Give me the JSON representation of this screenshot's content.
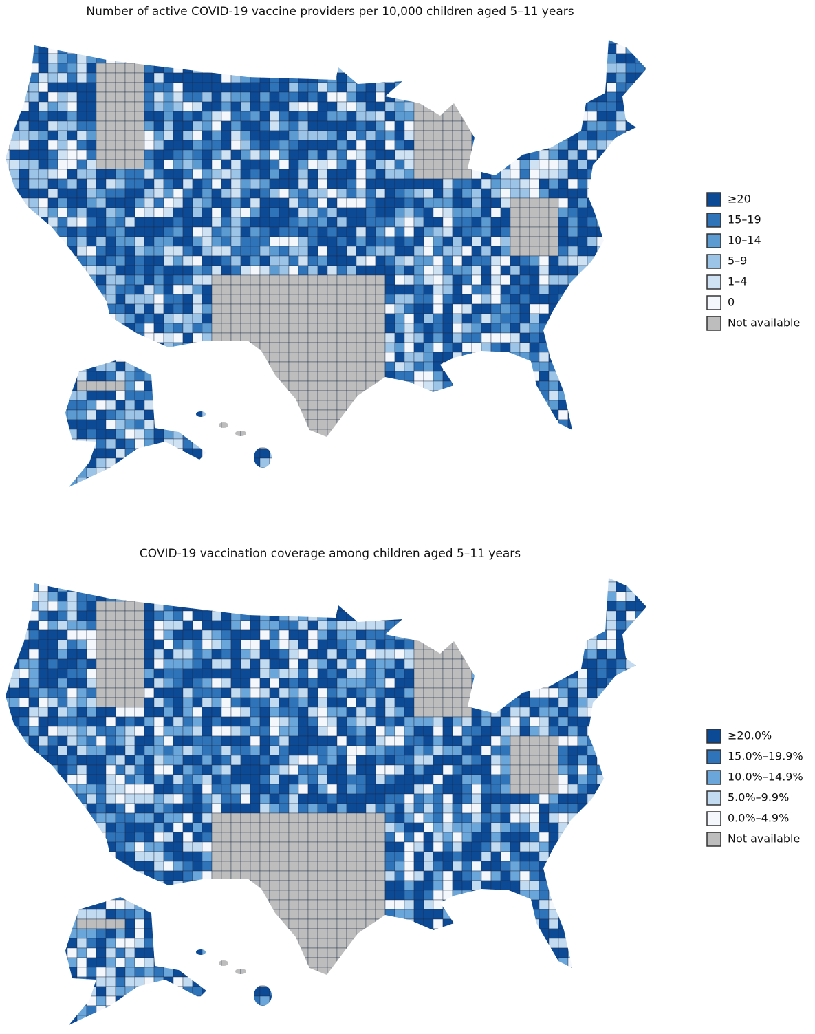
{
  "maps": [
    {
      "title": "Number of active COVID-19 vaccine providers per 10,000 children aged 5–11 years",
      "legend": [
        {
          "label": "≥20",
          "color": "#0d4a96"
        },
        {
          "label": "15–19",
          "color": "#2f73b9"
        },
        {
          "label": "10–14",
          "color": "#5b9bd2"
        },
        {
          "label": "5–9",
          "color": "#9bc4e6"
        },
        {
          "label": "1–4",
          "color": "#cfe2f3"
        },
        {
          "label": "0",
          "color": "#f4f8fd"
        },
        {
          "label": "Not available",
          "color": "#bdbdbd"
        }
      ]
    },
    {
      "title": "COVID-19 vaccination coverage among children aged 5–11 years",
      "legend": [
        {
          "label": "≥20.0%",
          "color": "#0d4a96"
        },
        {
          "label": "15.0%–19.9%",
          "color": "#2f73b9"
        },
        {
          "label": "10.0%–14.9%",
          "color": "#6aa6d9"
        },
        {
          "label": "5.0%–9.9%",
          "color": "#c2dbf0"
        },
        {
          "label": "0.0%–4.9%",
          "color": "#f4f8fd"
        },
        {
          "label": "Not available",
          "color": "#bdbdbd"
        }
      ]
    }
  ]
}
